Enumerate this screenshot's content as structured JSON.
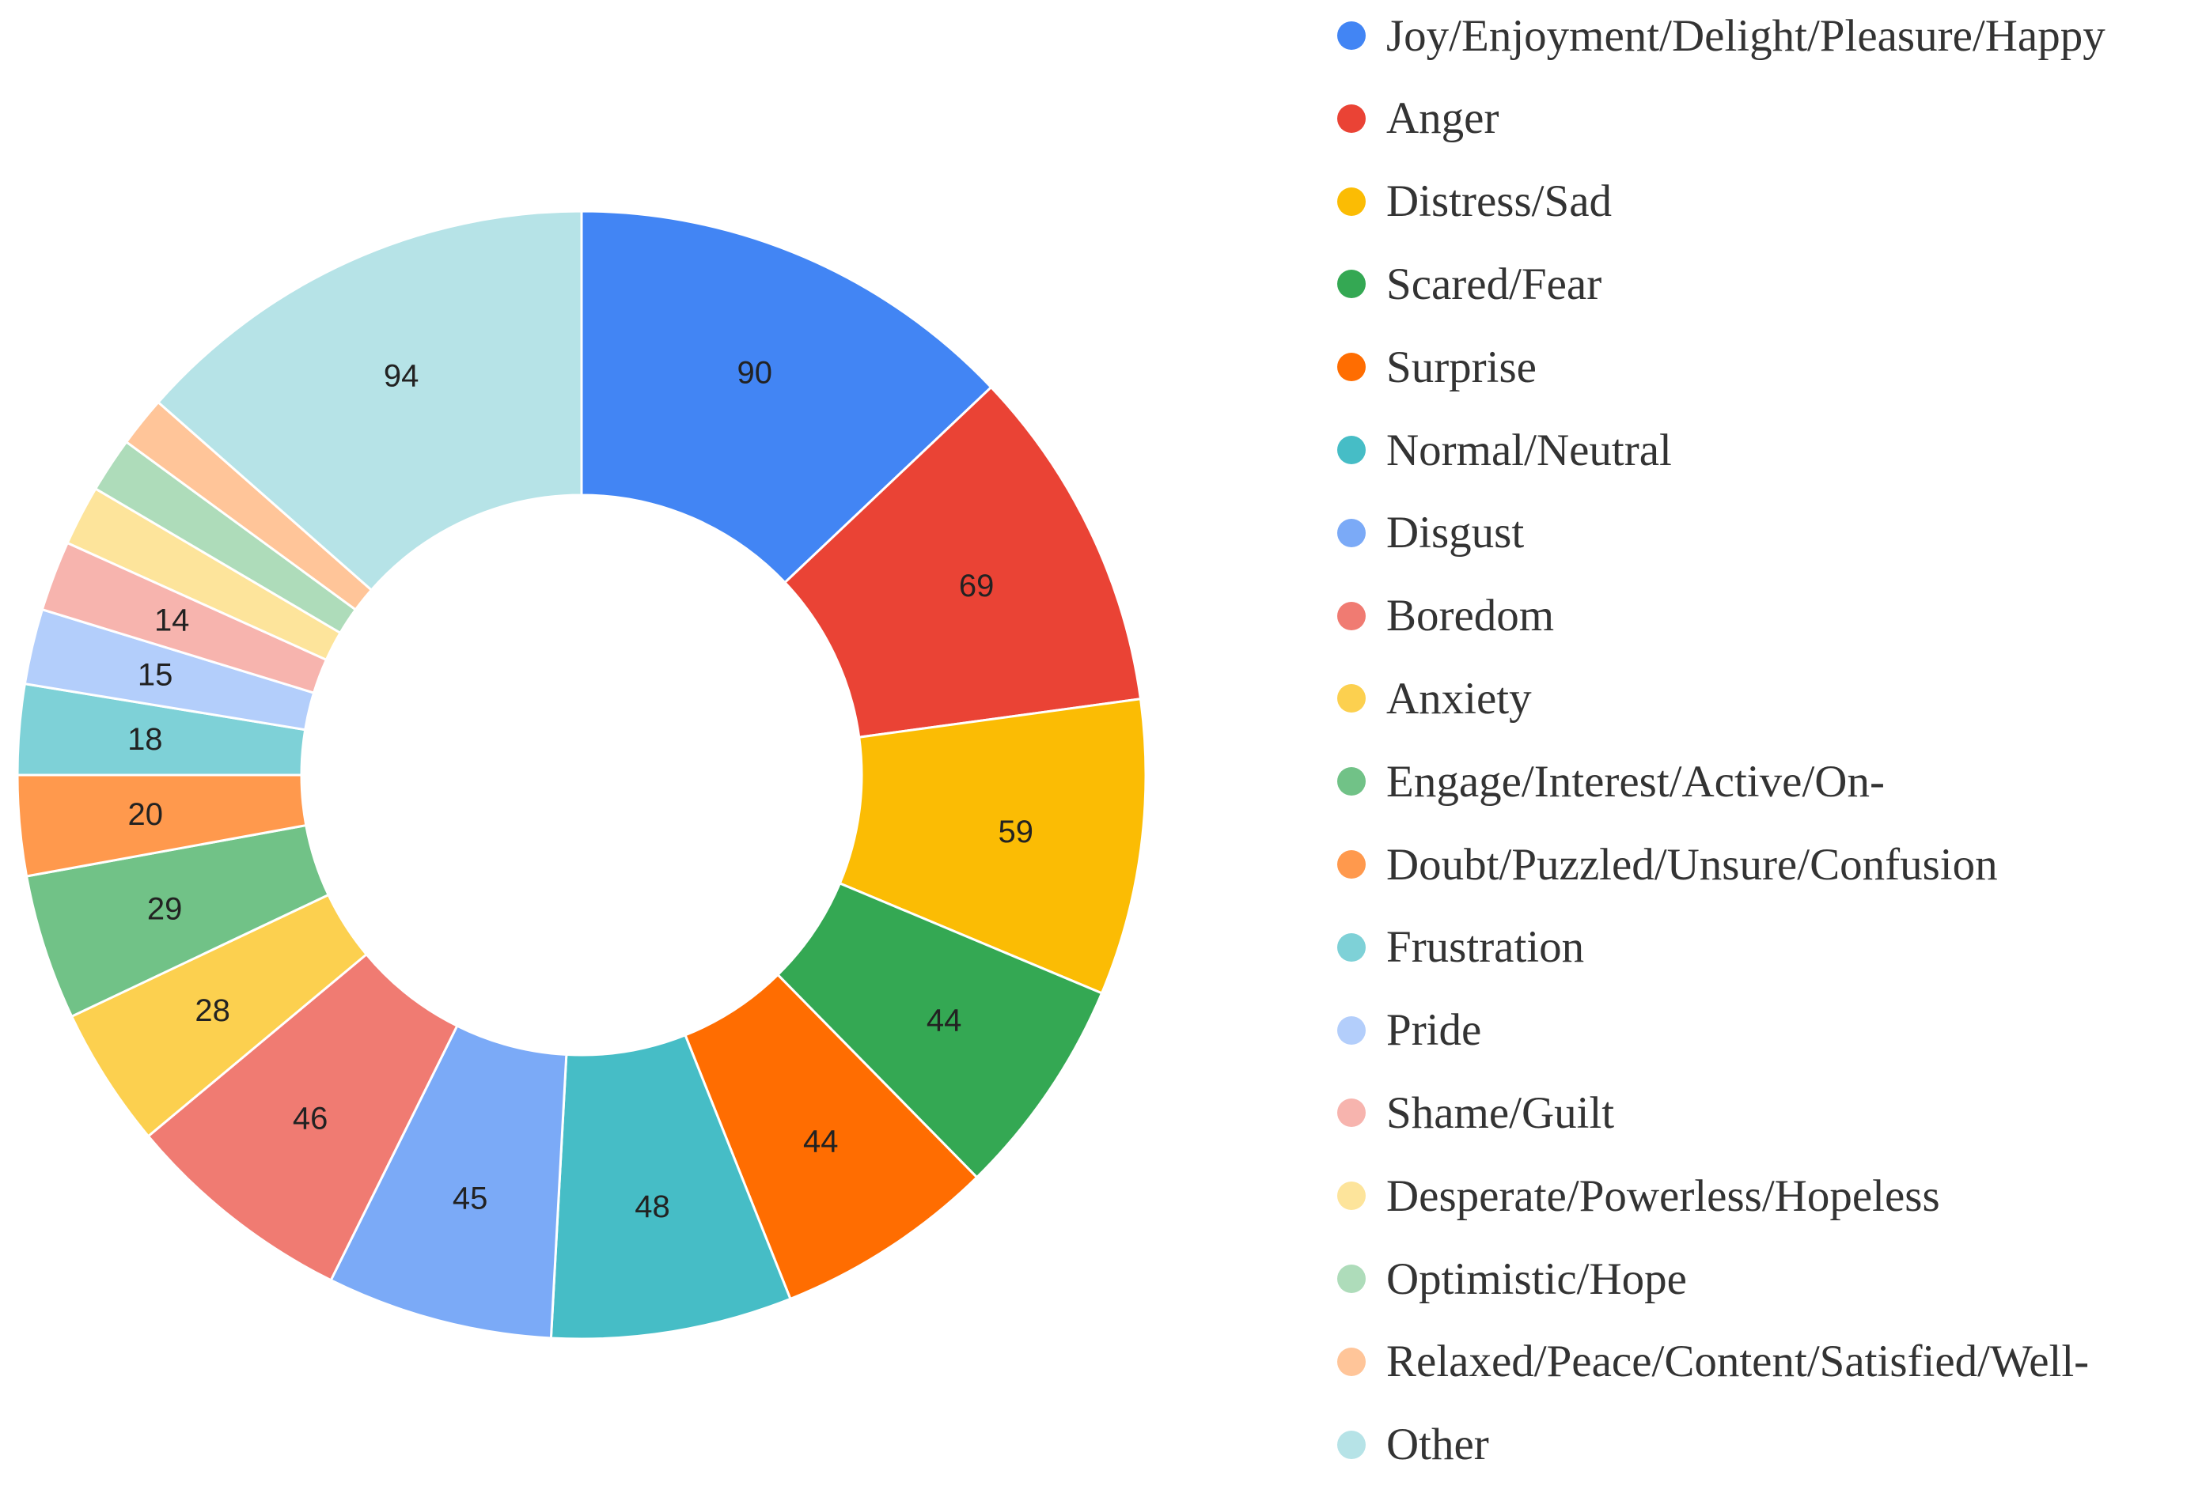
{
  "chart_data": {
    "type": "pie",
    "donut": true,
    "title": "",
    "legend_position": "right",
    "slices": [
      {
        "label": "Joy/Enjoyment/Delight/Pleasure/Happy",
        "value": 90,
        "color": "#4285F4",
        "show_label": true
      },
      {
        "label": "Anger",
        "value": 69,
        "color": "#EA4335",
        "show_label": true
      },
      {
        "label": "Distress/Sad",
        "value": 59,
        "color": "#FBBC04",
        "show_label": true
      },
      {
        "label": "Scared/Fear",
        "value": 44,
        "color": "#34A853",
        "show_label": true
      },
      {
        "label": "Surprise",
        "value": 44,
        "color": "#FF6D01",
        "show_label": true
      },
      {
        "label": "Normal/Neutral",
        "value": 48,
        "color": "#46BDC6",
        "show_label": true
      },
      {
        "label": "Disgust",
        "value": 45,
        "color": "#7BAAF7",
        "show_label": true
      },
      {
        "label": "Boredom",
        "value": 46,
        "color": "#F07B72",
        "show_label": true
      },
      {
        "label": "Anxiety",
        "value": 28,
        "color": "#FCD04F",
        "show_label": true
      },
      {
        "label": "Engage/Interest/Active/On-",
        "value": 29,
        "color": "#71C287",
        "show_label": true
      },
      {
        "label": "Doubt/Puzzled/Unsure/Confusion",
        "value": 20,
        "color": "#FF994D",
        "show_label": true
      },
      {
        "label": "Frustration",
        "value": 18,
        "color": "#7ED1D7",
        "show_label": true
      },
      {
        "label": "Pride",
        "value": 15,
        "color": "#B3CEFB",
        "show_label": true
      },
      {
        "label": "Shame/Guilt",
        "value": 14,
        "color": "#F7B4AE",
        "show_label": true
      },
      {
        "label": "Desperate/Powerless/Hopeless",
        "value": 12,
        "color": "#FDE49B",
        "show_label": false
      },
      {
        "label": "Optimistic/Hope",
        "value": 11,
        "color": "#AEDCBA",
        "show_label": false
      },
      {
        "label": "Relaxed/Peace/Content/Satisfied/Well-",
        "value": 10,
        "color": "#FFC599",
        "show_label": false
      },
      {
        "label": "Other",
        "value": 94,
        "color": "#B6E3E7",
        "show_label": true
      }
    ]
  }
}
